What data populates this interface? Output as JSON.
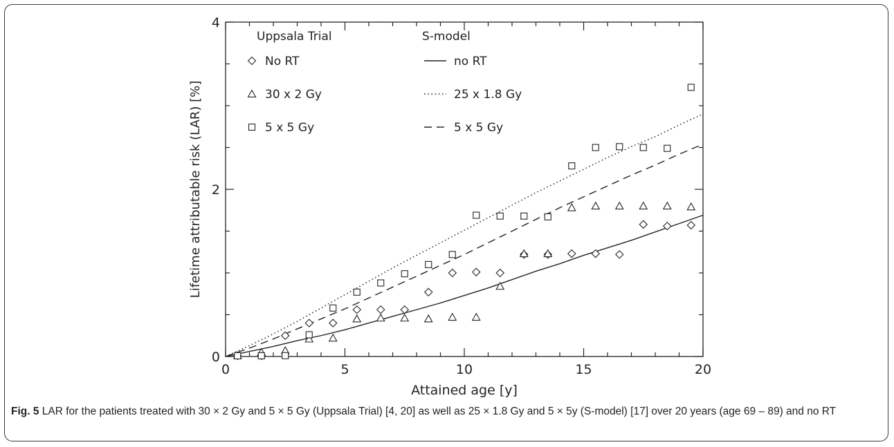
{
  "figure": {
    "label": "Fig. 5",
    "caption": " LAR for the patients treated with 30 × 2 Gy and 5 × 5 Gy (Uppsala Trial) [4, 20] as well as 25 × 1.8 Gy and 5 × 5y (S-model) [17] over 20 years (age 69 – 89) and no RT"
  },
  "chart_data": {
    "type": "scatter",
    "xlabel": "Attained age [y]",
    "ylabel": "Lifetime attributable risk (LAR) [%]",
    "xlim": [
      0,
      20
    ],
    "ylim": [
      0,
      4
    ],
    "x_ticks": [
      "0",
      "5",
      "10",
      "15",
      "20"
    ],
    "y_ticks": [
      "0",
      "2",
      "4"
    ],
    "grid": false,
    "legend_position": "top-left",
    "legend_headers": [
      "Uppsala Trial",
      "S-model"
    ],
    "points": [
      {
        "name": "No RT",
        "marker": "diamond",
        "x": [
          0.5,
          1.5,
          2.5,
          3.5,
          4.5,
          5.5,
          6.5,
          7.5,
          8.5,
          9.5,
          10.5,
          11.5,
          12.5,
          13.5,
          14.5,
          15.5,
          16.5,
          17.5,
          18.5,
          19.5
        ],
        "y": [
          0.0,
          0.0,
          0.25,
          0.4,
          0.4,
          0.56,
          0.56,
          0.56,
          0.77,
          1.0,
          1.01,
          1.0,
          1.22,
          1.22,
          1.23,
          1.23,
          1.22,
          1.58,
          1.56,
          1.57
        ]
      },
      {
        "name": "30 x 2 Gy",
        "marker": "triangle",
        "x": [
          0.5,
          1.5,
          2.5,
          3.5,
          4.5,
          5.5,
          6.5,
          7.5,
          8.5,
          9.5,
          10.5,
          11.5,
          12.5,
          13.5,
          14.5,
          15.5,
          16.5,
          17.5,
          18.5,
          19.5
        ],
        "y": [
          0.0,
          0.05,
          0.07,
          0.21,
          0.22,
          0.45,
          0.46,
          0.46,
          0.45,
          0.47,
          0.47,
          0.84,
          1.23,
          1.23,
          1.78,
          1.8,
          1.8,
          1.8,
          1.8,
          1.79
        ]
      },
      {
        "name": "5 x 5 Gy",
        "marker": "square",
        "x": [
          0.5,
          1.5,
          2.5,
          3.5,
          4.5,
          5.5,
          6.5,
          7.5,
          8.5,
          9.5,
          10.5,
          11.5,
          12.5,
          13.5,
          14.5,
          15.5,
          16.5,
          17.5,
          18.5,
          19.5
        ],
        "y": [
          0.0,
          0.0,
          0.01,
          0.26,
          0.58,
          0.77,
          0.88,
          0.99,
          1.1,
          1.22,
          1.69,
          1.68,
          1.68,
          1.67,
          2.28,
          2.5,
          2.51,
          2.5,
          2.49,
          3.22
        ]
      }
    ],
    "curves": [
      {
        "name": "no RT",
        "dash": "solid",
        "x": [
          0,
          1,
          2,
          3,
          4,
          5,
          6,
          7,
          8,
          9,
          10,
          11,
          12,
          13,
          14,
          15,
          16,
          17,
          18,
          19,
          20
        ],
        "y": [
          0.0,
          0.06,
          0.12,
          0.19,
          0.25,
          0.32,
          0.4,
          0.48,
          0.56,
          0.64,
          0.73,
          0.82,
          0.92,
          1.02,
          1.11,
          1.21,
          1.3,
          1.39,
          1.49,
          1.59,
          1.69
        ]
      },
      {
        "name": "25 x 1.8 Gy",
        "dash": "dotted",
        "x": [
          0,
          1,
          2,
          3,
          4,
          5,
          6,
          7,
          8,
          9,
          10,
          11,
          12,
          13,
          14,
          15,
          16,
          17,
          18,
          19,
          20
        ],
        "y": [
          0.0,
          0.13,
          0.27,
          0.42,
          0.58,
          0.74,
          0.9,
          1.06,
          1.21,
          1.36,
          1.51,
          1.66,
          1.81,
          1.96,
          2.1,
          2.24,
          2.38,
          2.51,
          2.63,
          2.77,
          2.9
        ]
      },
      {
        "name": "5 x 5 Gy",
        "dash": "dashed",
        "x": [
          0,
          1,
          2,
          3,
          4,
          5,
          6,
          7,
          8,
          9,
          10,
          11,
          12,
          13,
          14,
          15,
          16,
          17,
          18,
          19,
          20
        ],
        "y": [
          0.0,
          0.1,
          0.21,
          0.33,
          0.45,
          0.57,
          0.7,
          0.83,
          0.96,
          1.09,
          1.22,
          1.36,
          1.5,
          1.64,
          1.78,
          1.91,
          2.04,
          2.17,
          2.29,
          2.42,
          2.54
        ]
      }
    ]
  }
}
